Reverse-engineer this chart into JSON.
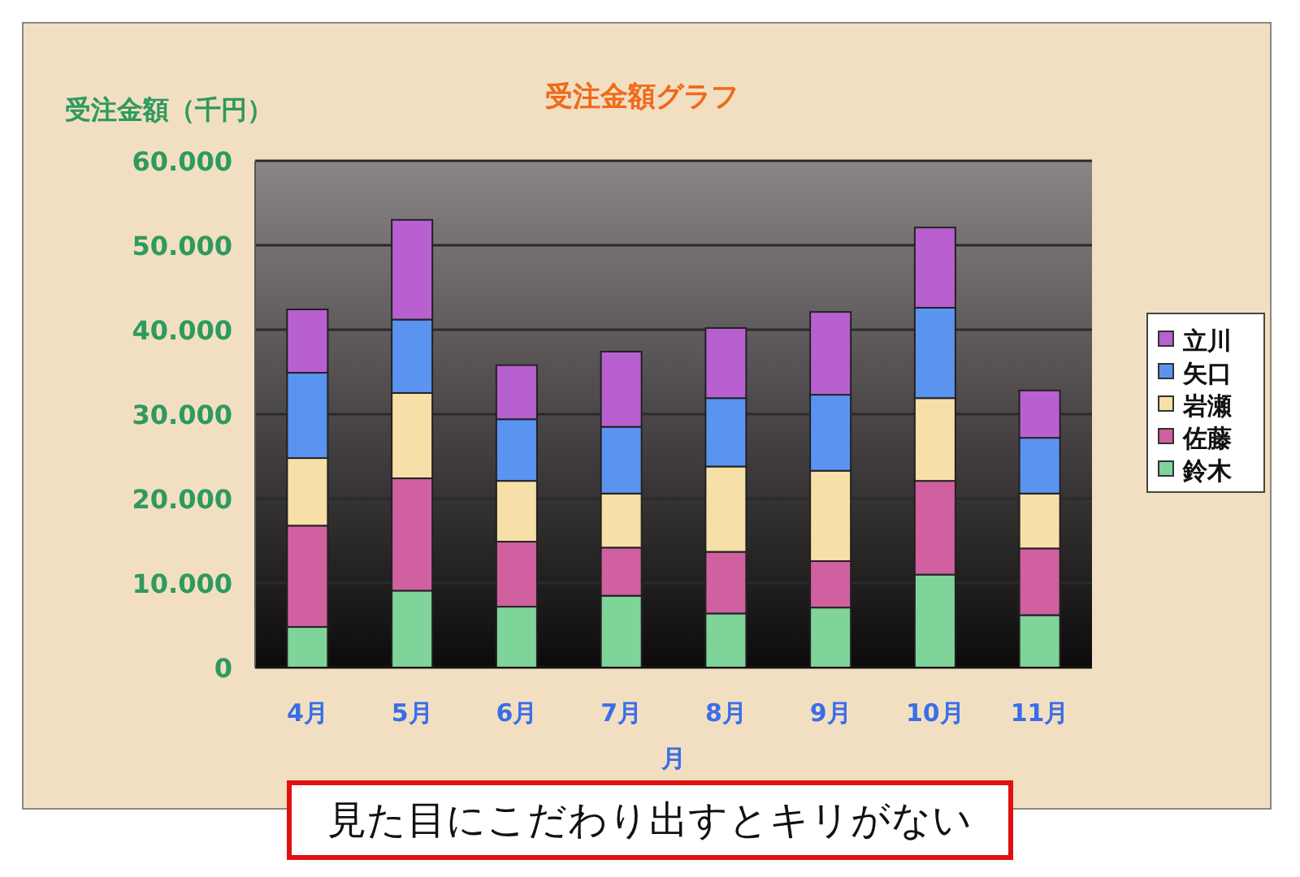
{
  "chart_data": {
    "type": "bar",
    "stacked": true,
    "title": "受注金額グラフ",
    "xlabel": "月",
    "ylabel": "受注金額（千円）",
    "categories": [
      "4月",
      "5月",
      "6月",
      "7月",
      "8月",
      "9月",
      "10月",
      "11月"
    ],
    "series": [
      {
        "name": "鈴木",
        "color": "#7fd49a",
        "values": [
          4800,
          9100,
          7200,
          8500,
          6400,
          7100,
          11000,
          6200
        ]
      },
      {
        "name": "佐藤",
        "color": "#d0609f",
        "values": [
          12000,
          13300,
          7700,
          5700,
          7300,
          5500,
          11100,
          7900
        ]
      },
      {
        "name": "岩瀬",
        "color": "#f7dfa8",
        "values": [
          8000,
          10100,
          7200,
          6400,
          10100,
          10700,
          9800,
          6500
        ]
      },
      {
        "name": "矢口",
        "color": "#5b94f0",
        "values": [
          10100,
          8700,
          7300,
          7900,
          8100,
          9000,
          10700,
          6600
        ]
      },
      {
        "name": "立川",
        "color": "#b860d0",
        "values": [
          7500,
          11800,
          6400,
          8900,
          8300,
          9800,
          9500,
          5600
        ]
      }
    ],
    "ylim": [
      0,
      60000
    ],
    "yticks": [
      0,
      {
        "value": 10000,
        "label": "10.000"
      },
      {
        "value": 20000,
        "label": "20.000"
      },
      {
        "value": 30000,
        "label": "30.000"
      },
      {
        "value": 40000,
        "label": "40.000"
      },
      {
        "value": 50000,
        "label": "50.000"
      },
      {
        "value": 60000,
        "label": "60.000"
      }
    ],
    "grid": "y",
    "legend": "right",
    "annotations": [
      "見た目にこだわり出すとキリがない"
    ]
  }
}
